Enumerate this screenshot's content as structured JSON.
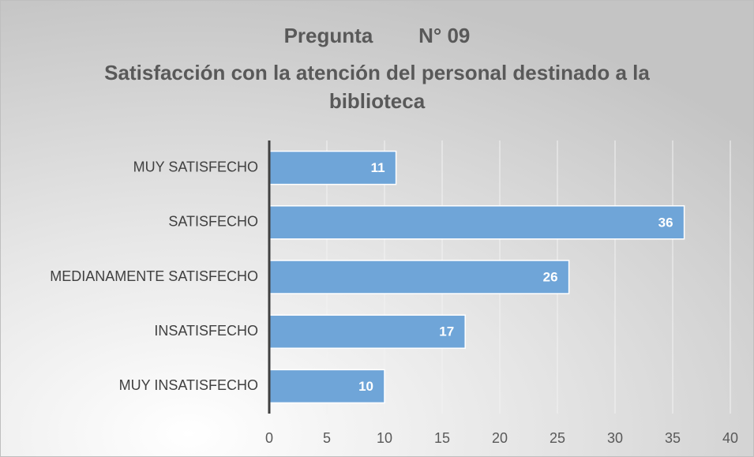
{
  "chart_data": {
    "type": "bar",
    "orientation": "horizontal",
    "title": "Pregunta        N° 09",
    "subtitle": "Satisfacción con la atención del personal destinado a la biblioteca",
    "categories": [
      "MUY SATISFECHO",
      "SATISFECHO",
      "MEDIANAMENTE SATISFECHO",
      "INSATISFECHO",
      "MUY INSATISFECHO"
    ],
    "values": [
      11,
      36,
      26,
      17,
      10
    ],
    "color": "#6fa5d8",
    "xlim": [
      0,
      40
    ],
    "xticks": [
      0,
      5,
      10,
      15,
      20,
      25,
      30,
      35,
      40
    ],
    "grid": true
  }
}
